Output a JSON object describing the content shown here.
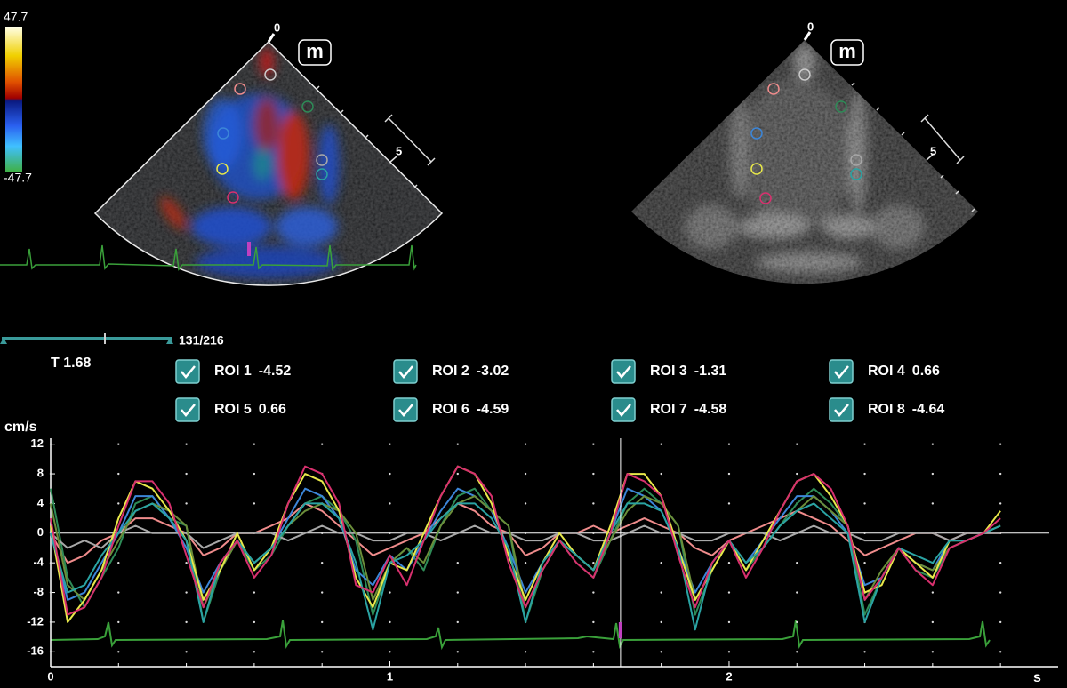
{
  "colorbar": {
    "max": 47.7,
    "min": -47.7
  },
  "images": [
    {
      "depth_start": 0,
      "depth_mark": 5,
      "badge": "m"
    },
    {
      "depth_start": 0,
      "depth_mark": 5,
      "badge": "m"
    }
  ],
  "frame": "131/216",
  "chart_data": {
    "type": "line",
    "y_label": "cm/s",
    "x_label": "s",
    "xlim": [
      0,
      2.97
    ],
    "ylim": [
      -18,
      12.8
    ],
    "xticks": [
      0,
      1,
      2
    ],
    "xminorticks": [
      0.2,
      0.4,
      0.6,
      0.8,
      1.2,
      1.4,
      1.6,
      1.8,
      2.2,
      2.4,
      2.6,
      2.8
    ],
    "yticks": [
      12,
      8,
      4,
      0,
      -4,
      -8,
      -12,
      -16
    ],
    "grid": true,
    "cursor": {
      "label": "T",
      "value": 1.68
    },
    "x": [
      0,
      0.05,
      0.1,
      0.15,
      0.2,
      0.25,
      0.3,
      0.35,
      0.4,
      0.45,
      0.5,
      0.55,
      0.6,
      0.65,
      0.7,
      0.75,
      0.8,
      0.85,
      0.9,
      0.95,
      1.0,
      1.05,
      1.1,
      1.15,
      1.2,
      1.25,
      1.3,
      1.35,
      1.4,
      1.45,
      1.5,
      1.55,
      1.6,
      1.65,
      1.7,
      1.75,
      1.8,
      1.85,
      1.9,
      1.95,
      2.0,
      2.05,
      2.1,
      2.15,
      2.2,
      2.25,
      2.3,
      2.35,
      2.4,
      2.45,
      2.5,
      2.55,
      2.6,
      2.65,
      2.7,
      2.75,
      2.8
    ],
    "series": [
      {
        "name": "ROI 1",
        "cursor_value": -4.52,
        "color": "#f08c8c",
        "values": [
          0,
          -4,
          -3,
          -1,
          0,
          2,
          2,
          1,
          0,
          -3,
          -2,
          0,
          0,
          1,
          2,
          4,
          3,
          1,
          -1,
          -3,
          -2,
          -1,
          0,
          2,
          4,
          3,
          1,
          0,
          -3,
          -2,
          0,
          0,
          1,
          0,
          1,
          2,
          1,
          0,
          -2,
          -3,
          -1,
          0,
          1,
          2,
          3,
          2,
          1,
          -1,
          -3,
          -2,
          -1,
          0,
          0,
          -1,
          0,
          0,
          0
        ]
      },
      {
        "name": "ROI 2",
        "cursor_value": -3.02,
        "color": "#2e8b57",
        "values": [
          6,
          -6,
          -10,
          -6,
          -2,
          4,
          5,
          2,
          1,
          -12,
          -5,
          -1,
          -5,
          -3,
          1,
          4,
          5,
          3,
          -1,
          -11,
          -4,
          -2,
          -5,
          1,
          5,
          6,
          3,
          1,
          -12,
          -5,
          -1,
          -4,
          -6,
          -1,
          4,
          6,
          4,
          1,
          -11,
          -5,
          -1,
          -5,
          -2,
          1,
          4,
          6,
          4,
          1,
          -11,
          -6,
          -2,
          -5,
          -6,
          -2,
          -1,
          0,
          1
        ]
      },
      {
        "name": "ROI 3",
        "cursor_value": -1.31,
        "color": "#3c86d8",
        "values": [
          0,
          -9,
          -8,
          -4,
          0,
          5,
          5,
          2,
          -2,
          -8,
          -4,
          -1,
          -4,
          -2,
          2,
          6,
          5,
          2,
          -5,
          -7,
          -3,
          -5,
          -1,
          3,
          6,
          5,
          3,
          -2,
          -8,
          -4,
          -1,
          -3,
          -5,
          0,
          6,
          5,
          3,
          -2,
          -8,
          -4,
          -1,
          -4,
          -1,
          2,
          5,
          5,
          3,
          0,
          -7,
          -6,
          -2,
          -4,
          -5,
          -1,
          -1,
          0,
          1
        ]
      },
      {
        "name": "ROI 4",
        "cursor_value": 0.66,
        "color": "#a8a8a8",
        "values": [
          0,
          -2,
          -1,
          -2,
          0,
          1,
          0,
          0,
          0,
          -2,
          -1,
          0,
          0,
          0,
          -1,
          0,
          1,
          0,
          0,
          -1,
          -1,
          0,
          0,
          -1,
          0,
          1,
          0,
          0,
          -1,
          -1,
          0,
          0,
          -1,
          -1,
          0,
          1,
          0,
          0,
          -1,
          -1,
          0,
          0,
          0,
          -1,
          0,
          1,
          0,
          0,
          -1,
          -1,
          0,
          0,
          0,
          -1,
          0,
          0,
          0
        ]
      },
      {
        "name": "ROI 5",
        "cursor_value": 0.66,
        "color": "#6b8e3a",
        "values": [
          4,
          -7,
          -9,
          -5,
          -1,
          3,
          4,
          3,
          1,
          -10,
          -5,
          -1,
          -4,
          -2,
          1,
          3,
          4,
          3,
          0,
          -9,
          -4,
          -2,
          -4,
          1,
          4,
          5,
          3,
          1,
          -10,
          -5,
          -1,
          -3,
          -5,
          -1,
          3,
          5,
          4,
          1,
          -9,
          -5,
          -1,
          -4,
          -2,
          1,
          3,
          5,
          3,
          1,
          -9,
          -5,
          -2,
          -4,
          -5,
          -2,
          -1,
          0,
          1
        ]
      },
      {
        "name": "ROI 6",
        "cursor_value": -4.59,
        "color": "#e8e84a",
        "values": [
          1,
          -12,
          -9,
          -5,
          2,
          7,
          6,
          3,
          -1,
          -9,
          -5,
          0,
          -5,
          -2,
          4,
          8,
          7,
          3,
          -6,
          -10,
          -4,
          -5,
          0,
          5,
          9,
          8,
          4,
          -3,
          -9,
          -4,
          0,
          -3,
          -5,
          1,
          8,
          8,
          5,
          -2,
          -9,
          -5,
          -1,
          -5,
          -1,
          3,
          7,
          8,
          5,
          1,
          -8,
          -7,
          -2,
          -4,
          -6,
          -1,
          -1,
          0,
          3
        ]
      },
      {
        "name": "ROI 7",
        "cursor_value": -4.58,
        "color": "#2aa3a3",
        "values": [
          0,
          -8,
          -7,
          -3,
          0,
          3,
          4,
          2,
          -1,
          -12,
          -4,
          -1,
          -4,
          -2,
          1,
          4,
          4,
          2,
          -4,
          -13,
          -4,
          -3,
          -1,
          2,
          4,
          4,
          2,
          -2,
          -12,
          -4,
          -1,
          -3,
          -5,
          0,
          4,
          4,
          3,
          -2,
          -13,
          -4,
          -1,
          -4,
          -2,
          1,
          3,
          4,
          2,
          0,
          -12,
          -6,
          -2,
          -3,
          -4,
          -1,
          -1,
          0,
          1
        ]
      },
      {
        "name": "ROI 8",
        "cursor_value": -4.64,
        "color": "#d8306e",
        "values": [
          2,
          -11,
          -10,
          -6,
          1,
          7,
          7,
          4,
          -3,
          -10,
          -4,
          -1,
          -6,
          -3,
          4,
          9,
          8,
          4,
          -7,
          -8,
          -3,
          -7,
          -1,
          5,
          9,
          8,
          5,
          -4,
          -10,
          -5,
          -1,
          -4,
          -6,
          0,
          8,
          7,
          5,
          -3,
          -10,
          -4,
          -1,
          -6,
          -2,
          3,
          7,
          8,
          6,
          1,
          -9,
          -6,
          -2,
          -5,
          -7,
          -2,
          -1,
          0,
          2
        ]
      }
    ]
  }
}
